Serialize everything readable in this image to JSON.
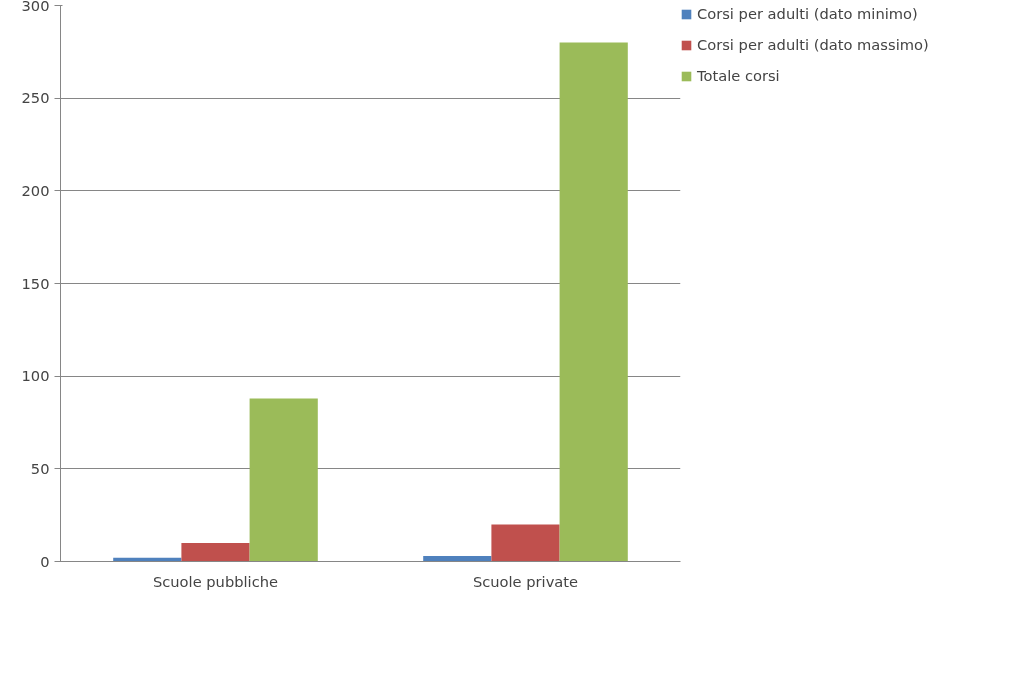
{
  "chart_data": {
    "type": "bar",
    "categories": [
      "Scuole pubbliche",
      "Scuole private"
    ],
    "series": [
      {
        "name": "Corsi per adulti (dato minimo)",
        "color": "#4f81bd",
        "values": [
          2,
          3
        ]
      },
      {
        "name": "Corsi per adulti (dato massimo)",
        "color": "#c0504d",
        "values": [
          10,
          20
        ]
      },
      {
        "name": "Totale corsi",
        "color": "#9bbb59",
        "values": [
          88,
          280
        ]
      }
    ],
    "ylim": [
      0,
      300
    ],
    "yticks": [
      0,
      50,
      100,
      150,
      200,
      250,
      300
    ],
    "grid": "y",
    "legend": "right"
  }
}
